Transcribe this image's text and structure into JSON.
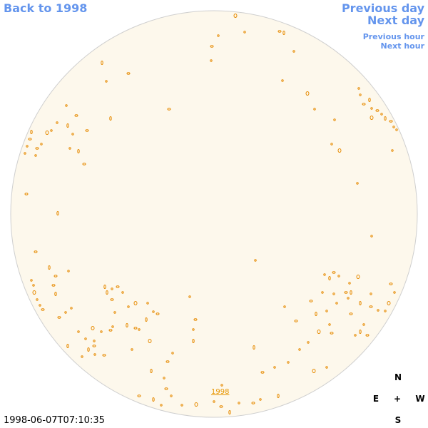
{
  "navigation": {
    "back": "Back to 1998",
    "previous_day": "Previous day",
    "next_day": "Next day",
    "previous_hour": "Previous hour",
    "next_hour": "Next hour"
  },
  "image": {
    "label": "1998",
    "timestamp": "1998-06-07T07:10:35"
  },
  "compass": {
    "north": "N",
    "east": "E",
    "center": "+",
    "west": "W",
    "south": "S"
  }
}
